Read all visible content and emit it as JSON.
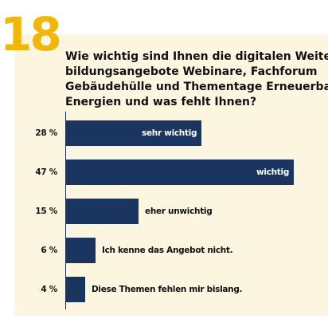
{
  "question_number": "18",
  "question_lines": [
    "Wie wichtig sind Ihnen die digitalen Weiter-",
    "bildungsangebote Webinare, Fachforum",
    "Gebäudehülle und Thementage Erneuerbare",
    "Energien und was fehlt Ihnen?"
  ],
  "colors": {
    "bar": "#1b3561",
    "accent": "#f2b705",
    "panel": "#fcf6e1"
  },
  "chart_data": {
    "type": "bar",
    "orientation": "horizontal",
    "categories": [
      "sehr wichtig",
      "wichtig",
      "eher unwichtig",
      "Ich kenne das Angebot nicht.",
      "Diese Themen fehlen mir bislang."
    ],
    "values": [
      28,
      47,
      15,
      6,
      4
    ],
    "value_labels": [
      "28 %",
      "47 %",
      "15 %",
      "6 %",
      "4 %"
    ],
    "label_inside": [
      true,
      true,
      false,
      false,
      false
    ],
    "unit": "%"
  }
}
